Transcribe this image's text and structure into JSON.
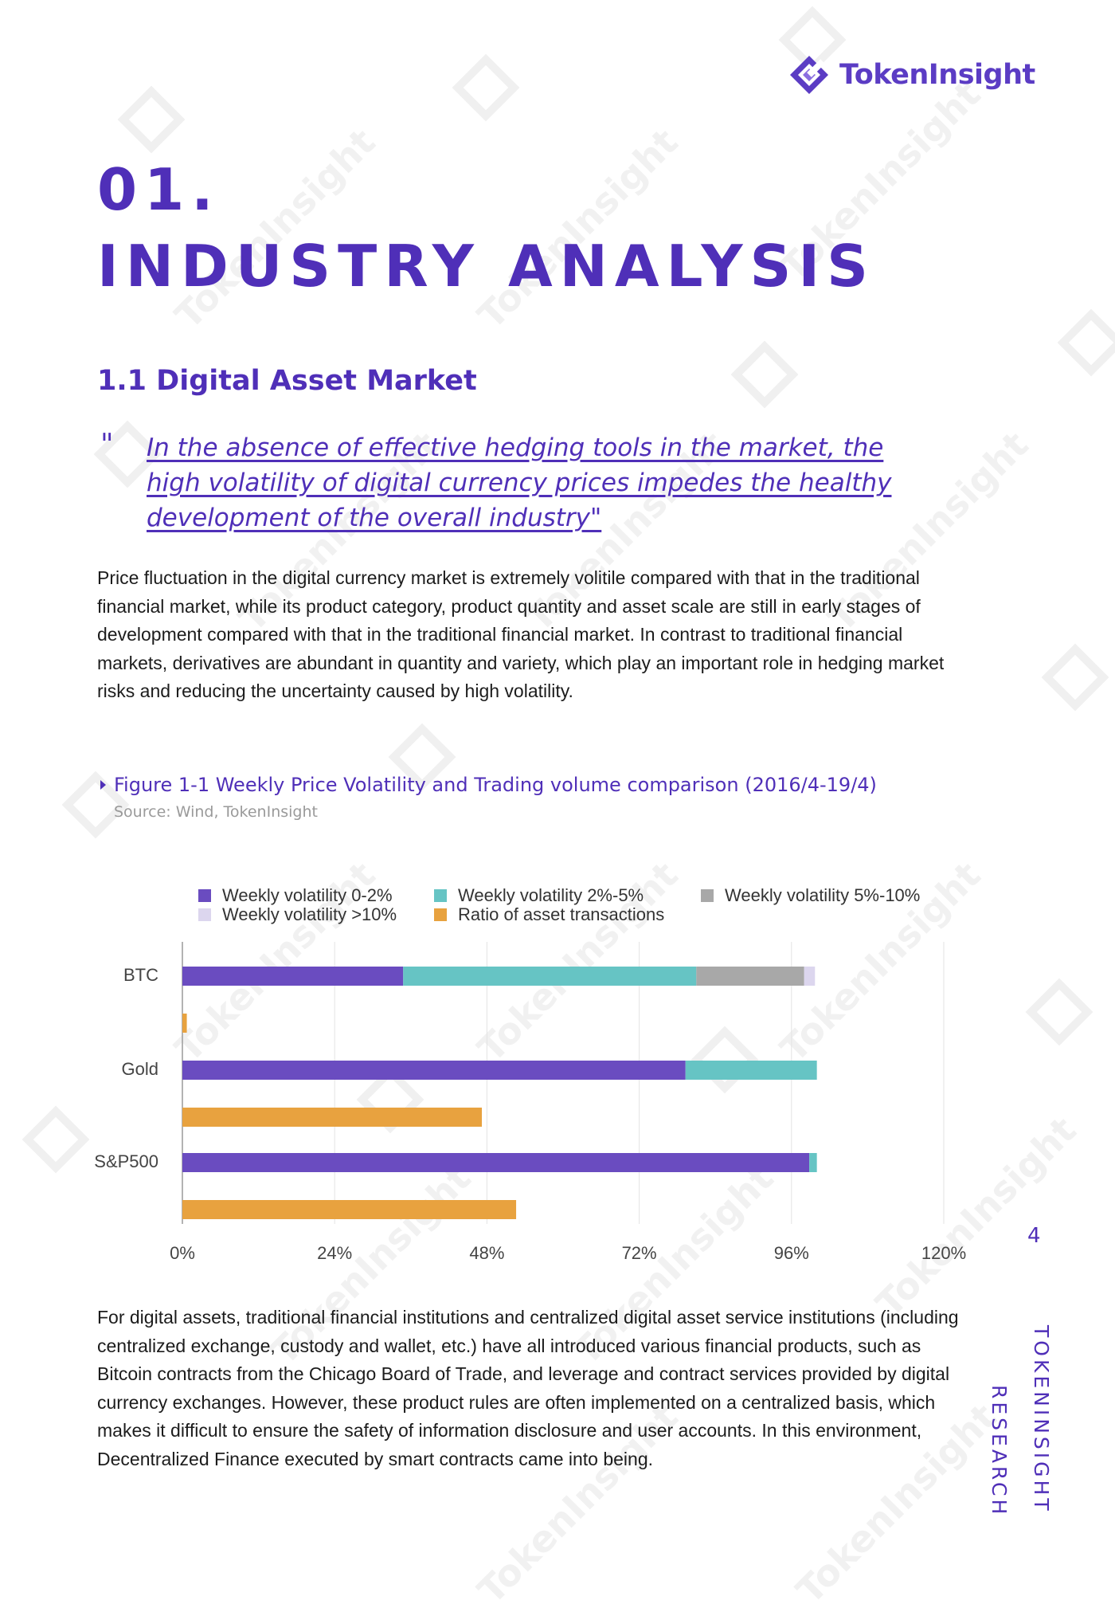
{
  "brand": {
    "name": "TokenInsight",
    "color": "#5b3cc4"
  },
  "watermark": "TokenInsight",
  "chapter": {
    "number": "01.",
    "title": "INDUSTRY ANALYSIS"
  },
  "section": {
    "heading": "1.1  Digital Asset Market"
  },
  "quote": {
    "mark": "\"",
    "text": "In the absence of effective hedging tools in the market, the high volatility of digital currency prices impedes the healthy development of the overall industry\""
  },
  "paragraphs": [
    "Price fluctuation in the digital currency market is extremely volitile compared with that in the traditional financial market, while its product category, product quantity and asset scale are still in early stages of development compared with that in the traditional financial market. In contrast to traditional financial markets, derivatives are abundant in quantity and variety, which play an important role in hedging market risks and reducing the uncertainty caused by high volatility.",
    "For digital assets, traditional financial institutions and centralized digital asset service institutions (including centralized exchange, custody and wallet, etc.) have all introduced various financial products, such as Bitcoin contracts from the Chicago Board of Trade, and leverage and contract services provided by digital currency exchanges. However, these product rules are often implemented on a centralized basis, which makes it difficult to ensure the safety of information disclosure and user accounts. In this environment, Decentralized Finance executed by smart contracts came into being."
  ],
  "figure": {
    "caption": "Figure 1-1 Weekly Price Volatility and Trading volume comparison (2016/4-19/4)",
    "source": "Source: Wind, TokenInsight"
  },
  "chart_data": {
    "type": "bar",
    "orientation": "horizontal",
    "stacked": true,
    "categories": [
      "BTC",
      "Gold",
      "S&P500"
    ],
    "volatility_series": [
      {
        "name": "Weekly volatility 0-2%",
        "color": "#6a4cc0",
        "values": [
          34.8,
          79.3,
          98.8
        ]
      },
      {
        "name": "Weekly volatility 2%-5%",
        "color": "#66c4c4",
        "values": [
          46.2,
          20.7,
          1.2
        ]
      },
      {
        "name": "Weekly volatility 5%-10%",
        "color": "#a8a8a8",
        "values": [
          17.0,
          0,
          0
        ]
      },
      {
        "name": "Weekly volatility >10%",
        "color": "#dcd6ee",
        "values": [
          1.7,
          0,
          0
        ]
      }
    ],
    "ratio_series": {
      "name": "Ratio of asset transactions",
      "color": "#e8a23f",
      "values": [
        0.7,
        47.2,
        52.6
      ]
    },
    "x_ticks": [
      "0%",
      "24%",
      "48%",
      "72%",
      "96%",
      "120%"
    ],
    "xlim": [
      0,
      120
    ],
    "grid": true,
    "legend_position": "top"
  },
  "footer": {
    "page_number": "4",
    "side_line_1": "TOKENINSIGHT",
    "side_line_2": "RESEARCH"
  }
}
